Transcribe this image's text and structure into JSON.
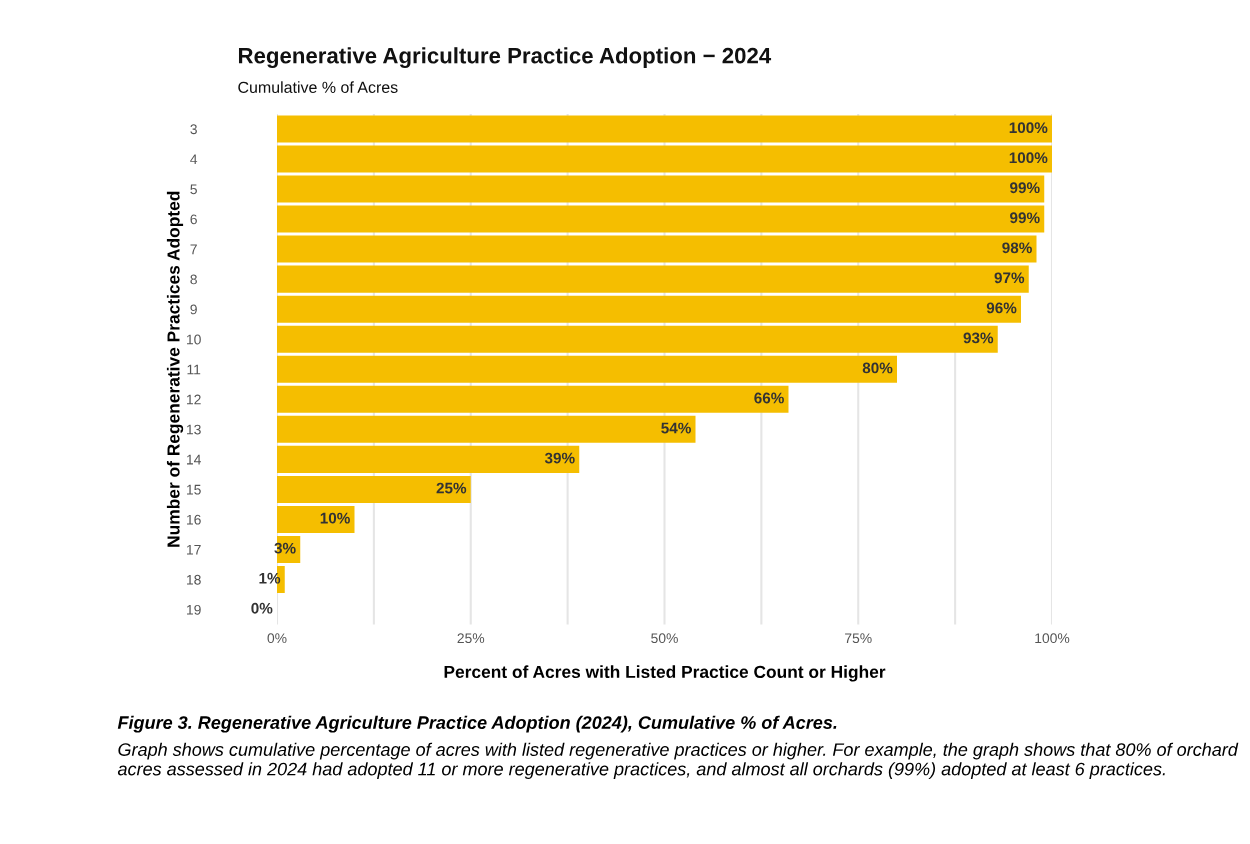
{
  "chart_data": {
    "type": "bar",
    "orientation": "horizontal",
    "title": "Regenerative Agriculture Practice Adoption − 2024",
    "subtitle": "Cumulative % of Acres",
    "xlabel": "Percent of Acres with Listed Practice Count or Higher",
    "ylabel": "Number of Regenerative Practices Adopted",
    "categories": [
      "3",
      "4",
      "5",
      "6",
      "7",
      "8",
      "9",
      "10",
      "11",
      "12",
      "13",
      "14",
      "15",
      "16",
      "17",
      "18",
      "19"
    ],
    "values": [
      100,
      100,
      99,
      99,
      98,
      97,
      96,
      93,
      80,
      66,
      54,
      39,
      25,
      10,
      3,
      1,
      0
    ],
    "value_labels": [
      "100%",
      "100%",
      "99%",
      "99%",
      "98%",
      "97%",
      "96%",
      "93%",
      "80%",
      "66%",
      "54%",
      "39%",
      "25%",
      "10%",
      "3%",
      "1%",
      "0%"
    ],
    "color": "#f5be00",
    "xlim": [
      0,
      100
    ],
    "xticks": [
      {
        "value": 0,
        "label": "0%"
      },
      {
        "value": 12.5,
        "label": null
      },
      {
        "value": 25,
        "label": "25%"
      },
      {
        "value": 37.5,
        "label": null
      },
      {
        "value": 50,
        "label": "50%"
      },
      {
        "value": 62.5,
        "label": null
      },
      {
        "value": 75,
        "label": "75%"
      },
      {
        "value": 87.5,
        "label": null
      },
      {
        "value": 100,
        "label": "100%"
      }
    ],
    "grid": "x",
    "annotations": [
      "Figure 3. Regenerative Agriculture Practice Adoption (2024), Cumulative % of Acres.",
      "Graph shows cumulative percentage of acres with listed regenerative practices or higher. For example, the graph shows that 80% of orchard acres assessed in 2024 had adopted 11 or more regenerative practices, and almost all orchards (99%) adopted at least 6 practices."
    ]
  }
}
